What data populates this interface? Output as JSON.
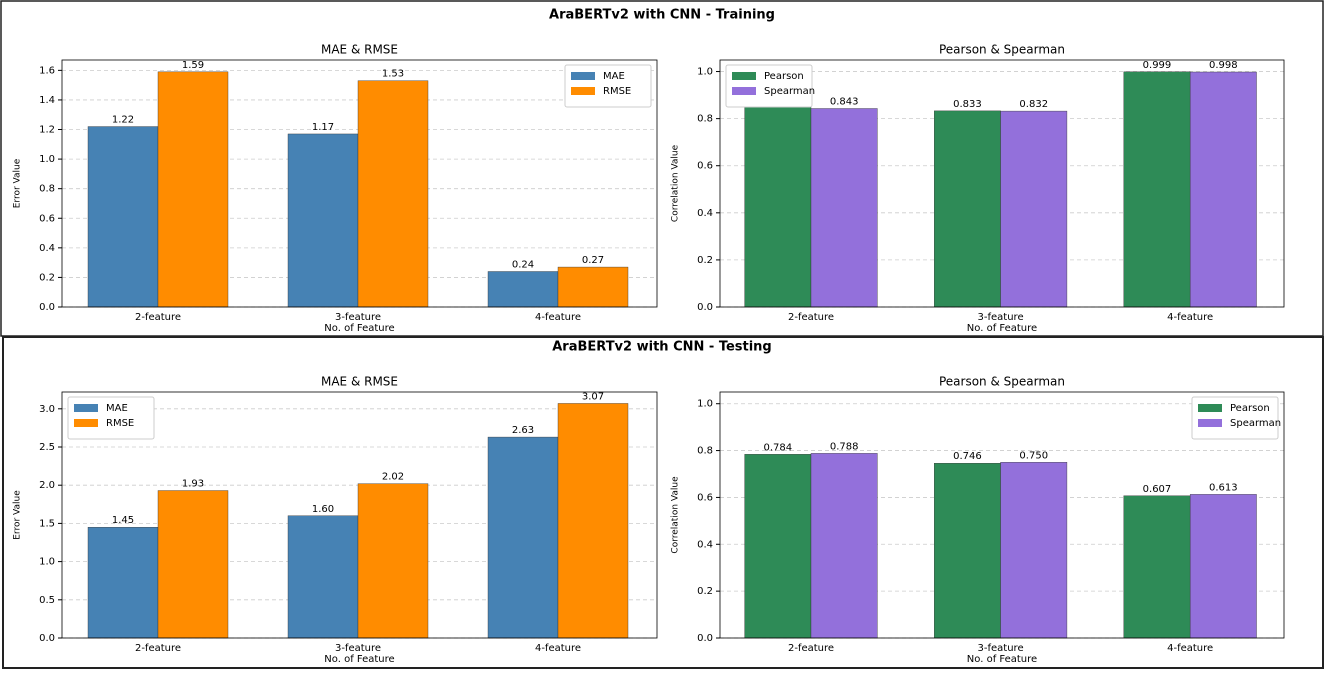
{
  "panels": [
    {
      "title": "AraBERTv2 with CNN - Training"
    },
    {
      "title": "AraBERTv2 with CNN - Testing"
    }
  ],
  "chart_data": [
    {
      "type": "bar",
      "title": "MAE & RMSE",
      "xlabel": "No. of Feature",
      "ylabel": "Error Value",
      "categories": [
        "2-feature",
        "3-feature",
        "4-feature"
      ],
      "series": [
        {
          "name": "MAE",
          "color": "#4682b4",
          "values": [
            1.22,
            1.17,
            0.24
          ]
        },
        {
          "name": "RMSE",
          "color": "#ff8c00",
          "values": [
            1.59,
            1.53,
            0.27
          ]
        }
      ],
      "ylim": [
        0,
        1.67
      ],
      "yticks": [
        {
          "value": 0,
          "label": "0.0"
        },
        0.2,
        0.4,
        0.6,
        0.8,
        {
          "value": 1,
          "label": "1.0"
        },
        1.2,
        1.4,
        1.6
      ],
      "grid": true,
      "legend": "upper right"
    },
    {
      "type": "bar",
      "title": "Pearson & Spearman",
      "xlabel": "No. of Feature",
      "ylabel": "Correlation Value",
      "categories": [
        "2-feature",
        "3-feature",
        "4-feature"
      ],
      "series": [
        {
          "name": "Pearson",
          "color": "#2e8b57",
          "values": [
            0.849,
            0.833,
            0.999
          ]
        },
        {
          "name": "Spearman",
          "color": "#9370db",
          "values": [
            0.843,
            0.832,
            0.998
          ]
        }
      ],
      "ylim": [
        0,
        1.049
      ],
      "yticks": [
        {
          "value": 0,
          "label": "0.0"
        },
        0.2,
        0.4,
        0.6,
        0.8,
        {
          "value": 1,
          "label": "1.0"
        }
      ],
      "grid": true,
      "legend": "upper left"
    },
    {
      "type": "bar",
      "title": "MAE & RMSE",
      "xlabel": "No. of Feature",
      "ylabel": "Error Value",
      "categories": [
        "2-feature",
        "3-feature",
        "4-feature"
      ],
      "series": [
        {
          "name": "MAE",
          "color": "#4682b4",
          "values": [
            1.45,
            1.6,
            2.63
          ],
          "value_labels": [
            "1.45",
            "1.60",
            "2.63"
          ]
        },
        {
          "name": "RMSE",
          "color": "#ff8c00",
          "values": [
            1.93,
            2.02,
            3.07
          ]
        }
      ],
      "ylim": [
        0,
        3.22
      ],
      "yticks": [
        {
          "value": 0,
          "label": "0.0"
        },
        0.5,
        {
          "value": 1,
          "label": "1.0"
        },
        1.5,
        {
          "value": 2,
          "label": "2.0"
        },
        2.5,
        {
          "value": 3,
          "label": "3.0"
        }
      ],
      "grid": true,
      "legend": "upper left"
    },
    {
      "type": "bar",
      "title": "Pearson & Spearman",
      "xlabel": "No. of Feature",
      "ylabel": "Correlation Value",
      "categories": [
        "2-feature",
        "3-feature",
        "4-feature"
      ],
      "series": [
        {
          "name": "Pearson",
          "color": "#2e8b57",
          "values": [
            0.784,
            0.746,
            0.607
          ]
        },
        {
          "name": "Spearman",
          "color": "#9370db",
          "values": [
            0.788,
            0.75,
            0.613
          ],
          "value_labels": [
            "0.788",
            "0.750",
            "0.613"
          ]
        }
      ],
      "ylim": [
        0,
        1.05
      ],
      "yticks": [
        {
          "value": 0,
          "label": "0.0"
        },
        0.2,
        0.4,
        0.6,
        0.8,
        {
          "value": 1,
          "label": "1.0"
        }
      ],
      "grid": true,
      "legend": "upper right"
    }
  ]
}
